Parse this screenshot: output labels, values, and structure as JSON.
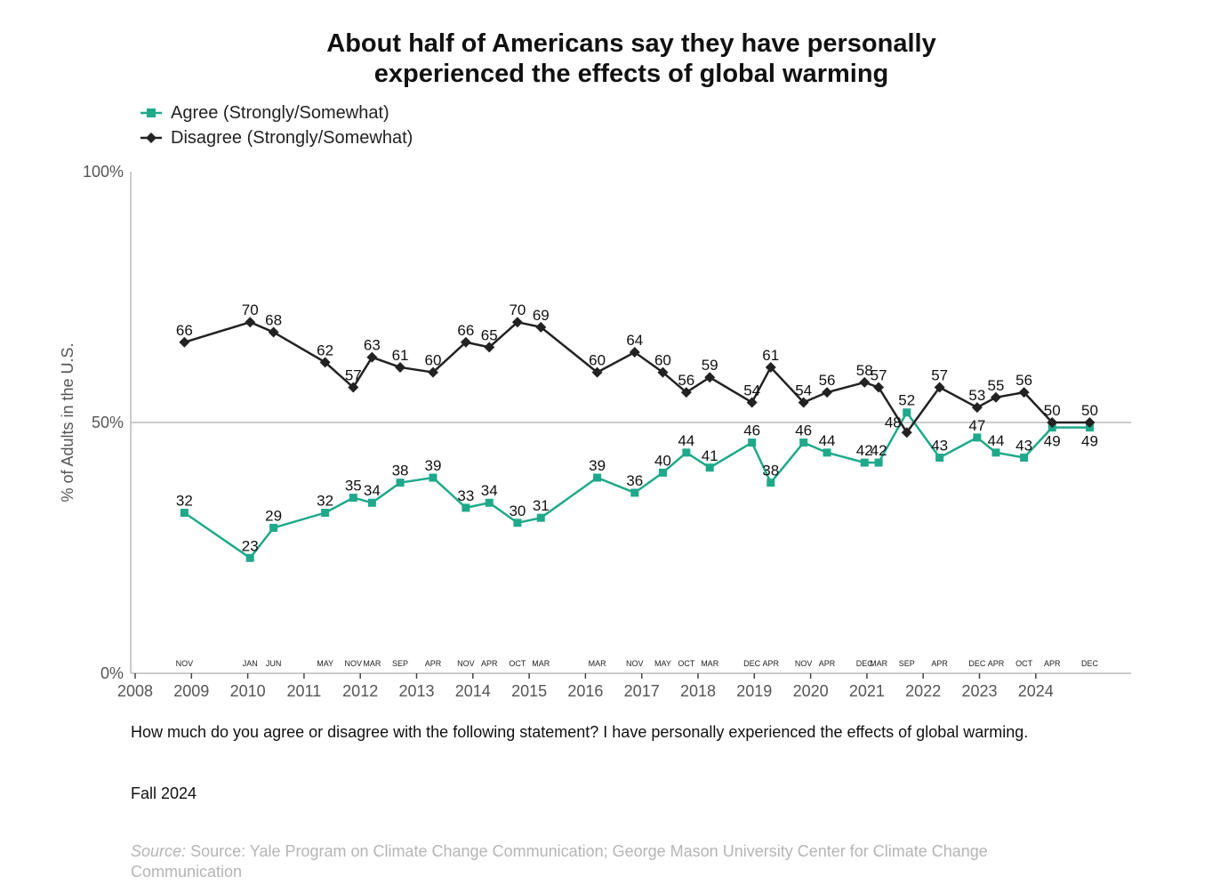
{
  "title_line1": "About half of Americans say they have personally",
  "title_line2": "experienced the effects of global warming",
  "question": "How much do you agree or disagree with the following statement? I have personally experienced the effects of global warming.",
  "wave": "Fall 2024",
  "source_prefix": "Source:",
  "source_text": "Source: Yale Program on Climate Change Communication; George Mason University Center for Climate Change Communication",
  "chart_data": {
    "type": "line",
    "title": "About half of Americans say they have personally experienced the effects of global warming",
    "ylabel": "% of Adults in the U.S.",
    "ylim": [
      0,
      100
    ],
    "y_ticks": [
      "0%",
      "50%",
      "100%"
    ],
    "x_ticks": [
      "2008",
      "2009",
      "2010",
      "2011",
      "2012",
      "2013",
      "2014",
      "2015",
      "2016",
      "2017",
      "2018",
      "2019",
      "2020",
      "2021",
      "2022",
      "2023",
      "2024"
    ],
    "legend_position": "top-left",
    "reference_line": 50,
    "x": [
      "2008-11",
      "2010-01",
      "2010-06",
      "2011-05",
      "2011-11",
      "2012-03",
      "2012-09",
      "2013-04",
      "2013-11",
      "2014-04",
      "2014-10",
      "2015-03",
      "2016-03",
      "2016-11",
      "2017-05",
      "2017-10",
      "2018-03",
      "2018-12",
      "2019-04",
      "2019-11",
      "2020-04",
      "2020-12",
      "2021-03",
      "2021-09",
      "2022-04",
      "2022-12",
      "2023-04",
      "2023-10",
      "2024-04",
      "2024-12"
    ],
    "month_labels": [
      "NOV",
      "JAN",
      "JUN",
      "MAY",
      "NOV",
      "MAR",
      "SEP",
      "APR",
      "NOV",
      "APR",
      "OCT",
      "MAR",
      "MAR",
      "NOV",
      "MAY",
      "OCT",
      "MAR",
      "DEC",
      "APR",
      "NOV",
      "APR",
      "DEC",
      "MAR",
      "SEP",
      "APR",
      "DEC",
      "APR",
      "OCT",
      "APR",
      "DEC"
    ],
    "series": [
      {
        "name": "Agree (Strongly/Somewhat)",
        "color": "#1fa98a",
        "marker": "square",
        "values": [
          32,
          23,
          29,
          32,
          35,
          34,
          38,
          39,
          33,
          34,
          30,
          31,
          39,
          36,
          40,
          44,
          41,
          46,
          38,
          46,
          44,
          42,
          42,
          52,
          43,
          47,
          44,
          43,
          49,
          49
        ]
      },
      {
        "name": "Disagree (Strongly/Somewhat)",
        "color": "#222222",
        "marker": "diamond",
        "values": [
          66,
          70,
          68,
          62,
          57,
          63,
          61,
          60,
          66,
          65,
          70,
          69,
          60,
          64,
          60,
          56,
          59,
          54,
          61,
          54,
          56,
          58,
          57,
          48,
          57,
          53,
          55,
          56,
          50,
          50
        ]
      }
    ]
  }
}
